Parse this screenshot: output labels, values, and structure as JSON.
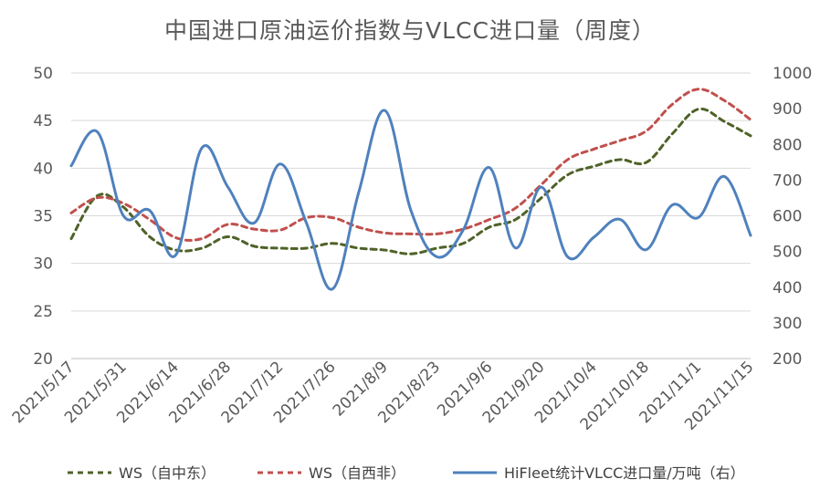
{
  "chart_data": {
    "type": "line",
    "title": "中国进口原油运价指数与VLCC进口量（周度）",
    "x": [
      "2021/5/17",
      "2021/5/24",
      "2021/5/31",
      "2021/6/7",
      "2021/6/14",
      "2021/6/21",
      "2021/6/28",
      "2021/7/5",
      "2021/7/12",
      "2021/7/19",
      "2021/7/26",
      "2021/8/2",
      "2021/8/9",
      "2021/8/16",
      "2021/8/23",
      "2021/8/30",
      "2021/9/6",
      "2021/9/13",
      "2021/9/20",
      "2021/9/27",
      "2021/10/4",
      "2021/10/11",
      "2021/10/18",
      "2021/10/25",
      "2021/11/1",
      "2021/11/8",
      "2021/11/15"
    ],
    "x_tick_labels": [
      "2021/5/17",
      "2021/5/31",
      "2021/6/14",
      "2021/6/28",
      "2021/7/12",
      "2021/7/26",
      "2021/8/9",
      "2021/8/23",
      "2021/9/6",
      "2021/9/20",
      "2021/10/4",
      "2021/10/18",
      "2021/11/1",
      "2021/11/15"
    ],
    "y_left": {
      "ylim": [
        20,
        50
      ],
      "ticks": [
        "20",
        "25",
        "30",
        "35",
        "40",
        "45",
        "50"
      ]
    },
    "y_right": {
      "ylim": [
        200,
        1000
      ],
      "ticks": [
        "200",
        "300",
        "400",
        "500",
        "600",
        "700",
        "800",
        "900",
        "1000"
      ]
    },
    "grid": true,
    "legend_position": "bottom",
    "series": [
      {
        "name": "WS（自中东）",
        "axis": "left",
        "color": "#4f6228",
        "style": "dashed",
        "values": [
          32.6,
          37.1,
          35.9,
          32.8,
          31.4,
          31.6,
          32.8,
          31.8,
          31.6,
          31.6,
          32.1,
          31.6,
          31.4,
          31.0,
          31.6,
          32.1,
          33.8,
          34.6,
          36.9,
          39.3,
          40.2,
          40.9,
          40.6,
          43.6,
          46.2,
          44.9,
          43.4
        ]
      },
      {
        "name": "WS（自西非）",
        "axis": "left",
        "color": "#c0504d",
        "style": "dashed",
        "values": [
          35.3,
          36.9,
          36.3,
          34.6,
          32.7,
          32.6,
          34.1,
          33.6,
          33.5,
          34.8,
          34.8,
          33.8,
          33.2,
          33.1,
          33.1,
          33.6,
          34.6,
          35.8,
          38.3,
          40.9,
          42.0,
          42.9,
          43.9,
          46.7,
          48.3,
          47.1,
          45.1
        ]
      },
      {
        "name": "HiFleet统计VLCC进口量/万吨（右）",
        "axis": "right",
        "color": "#4f81bd",
        "style": "solid",
        "values": [
          740,
          835,
          600,
          615,
          490,
          790,
          680,
          580,
          745,
          580,
          395,
          665,
          895,
          615,
          485,
          560,
          735,
          510,
          680,
          485,
          540,
          590,
          505,
          630,
          595,
          710,
          545
        ]
      }
    ]
  }
}
